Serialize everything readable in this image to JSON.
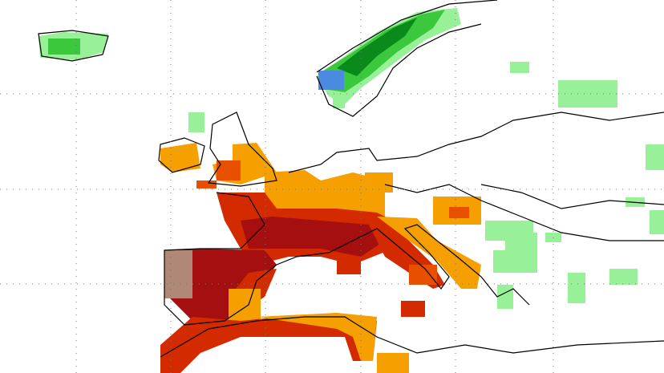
{
  "map": {
    "grid": "dotted",
    "background": "#ffffff",
    "palette": {
      "brown": "#b08878",
      "dark_red": "#a50f0f",
      "red": "#d42a00",
      "orange_red": "#e85000",
      "orange": "#f5a000",
      "light_green": "#98f098",
      "green": "#3cc83c",
      "dark_green": "#0a8a1a",
      "blue": "#4a8ae0",
      "coast": "#000000"
    }
  }
}
